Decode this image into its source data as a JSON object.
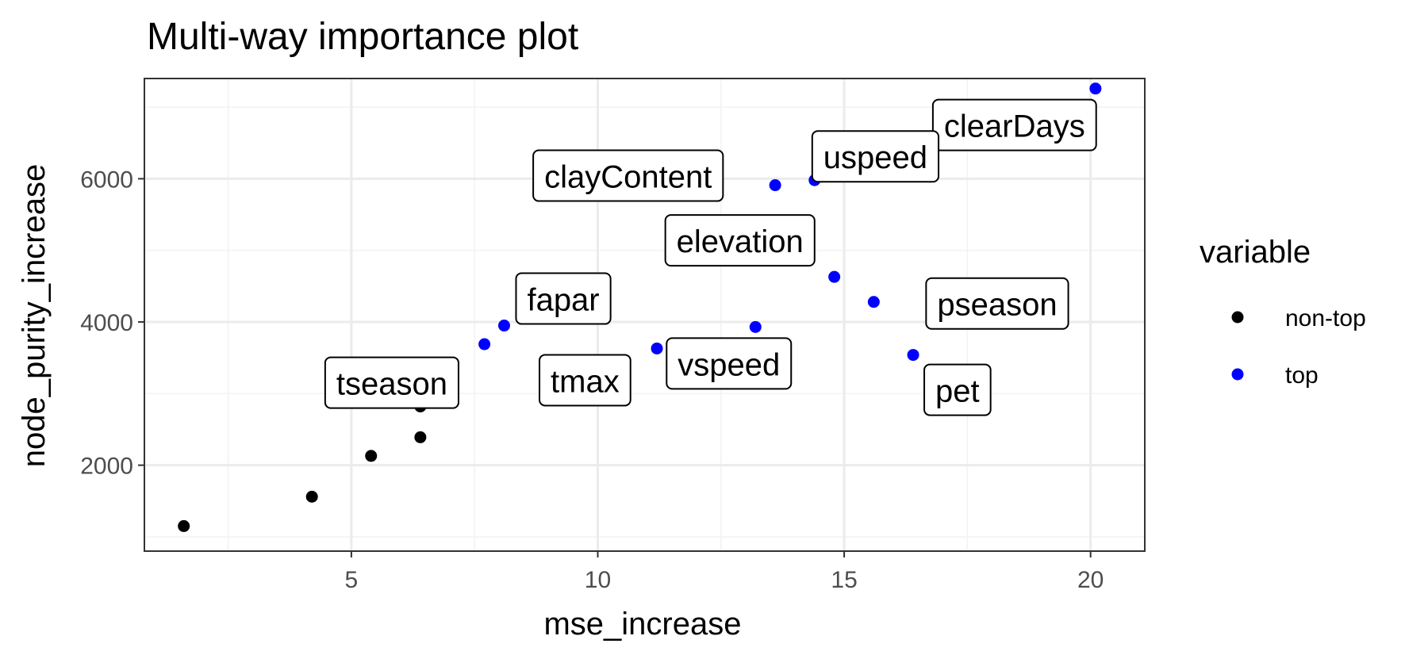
{
  "chart_data": {
    "type": "scatter",
    "title": "Multi-way importance plot",
    "xlabel": "mse_increase",
    "ylabel": "node_purity_increase",
    "xlim": [
      0.8,
      21.1
    ],
    "ylim": [
      800,
      7400
    ],
    "xticks": [
      5,
      10,
      15,
      20
    ],
    "yticks": [
      2000,
      4000,
      6000
    ],
    "grid": true,
    "legend": {
      "title": "variable",
      "position": "right",
      "entries": [
        {
          "name": "non-top",
          "color": "#000000"
        },
        {
          "name": "top",
          "color": "#0000ff"
        }
      ]
    },
    "series": [
      {
        "name": "non-top",
        "color": "#000000",
        "points": [
          {
            "x": 1.6,
            "y": 1150
          },
          {
            "x": 4.2,
            "y": 1560
          },
          {
            "x": 5.4,
            "y": 2130
          },
          {
            "x": 6.4,
            "y": 2390
          },
          {
            "x": 6.4,
            "y": 2820
          }
        ]
      },
      {
        "name": "top",
        "color": "#0000ff",
        "points": [
          {
            "x": 7.7,
            "y": 3690
          },
          {
            "x": 8.1,
            "y": 3950
          },
          {
            "x": 11.2,
            "y": 3630
          },
          {
            "x": 13.2,
            "y": 3930
          },
          {
            "x": 13.6,
            "y": 5910
          },
          {
            "x": 14.4,
            "y": 5980
          },
          {
            "x": 14.8,
            "y": 4630
          },
          {
            "x": 15.6,
            "y": 4280
          },
          {
            "x": 16.4,
            "y": 3540
          },
          {
            "x": 20.1,
            "y": 7260
          }
        ]
      }
    ],
    "labels": [
      {
        "text": "clearDays",
        "x": 20.1,
        "y": 7260
      },
      {
        "text": "uspeed",
        "x": 14.4,
        "y": 5980
      },
      {
        "text": "clayContent",
        "x": 13.6,
        "y": 5910
      },
      {
        "text": "elevation",
        "x": 14.8,
        "y": 4630
      },
      {
        "text": "pseason",
        "x": 15.6,
        "y": 4280
      },
      {
        "text": "fapar",
        "x": 8.1,
        "y": 3950
      },
      {
        "text": "vspeed",
        "x": 13.2,
        "y": 3930
      },
      {
        "text": "tmax",
        "x": 11.2,
        "y": 3630
      },
      {
        "text": "pet",
        "x": 16.4,
        "y": 3540
      },
      {
        "text": "tseason",
        "x": 6.4,
        "y": 2820
      }
    ]
  }
}
